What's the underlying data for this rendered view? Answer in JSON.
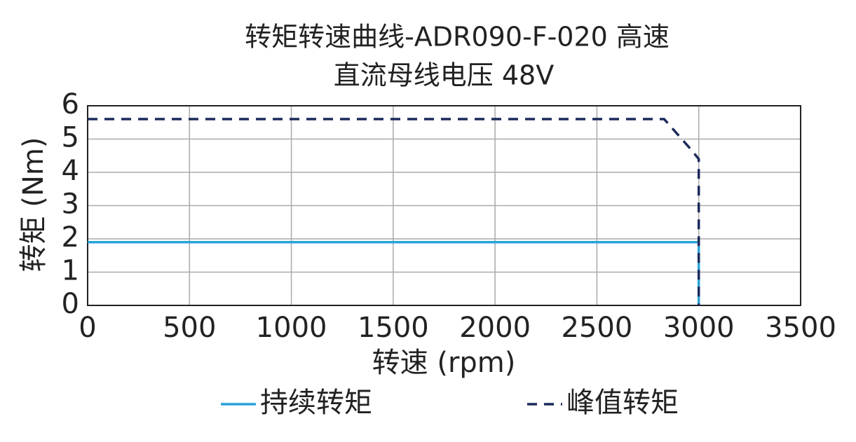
{
  "chart_data": {
    "type": "line",
    "title": "转矩转速曲线-ADR090-F-020 高速",
    "subtitle": "直流母线电压 48V",
    "x_label": "转速 (rpm)",
    "y_label": "转矩 (Nm)",
    "xlim": [
      0,
      3500
    ],
    "xticks": [
      0,
      500,
      1000,
      1500,
      2000,
      2500,
      3000,
      3500
    ],
    "ylim": [
      0,
      6
    ],
    "yticks": [
      0,
      1,
      2,
      3,
      4,
      5,
      6
    ],
    "grid": true,
    "series": [
      {
        "name": "持续转矩",
        "color": "#2aa3d8",
        "dash": false,
        "x": [
          0,
          3000,
          3000
        ],
        "values": [
          1.9,
          1.9,
          0
        ]
      },
      {
        "name": "峰值转矩",
        "color": "#1b2a5c",
        "dash": true,
        "x": [
          0,
          2830,
          2960,
          3000,
          3000
        ],
        "values": [
          5.6,
          5.6,
          4.7,
          4.4,
          0
        ]
      }
    ]
  }
}
